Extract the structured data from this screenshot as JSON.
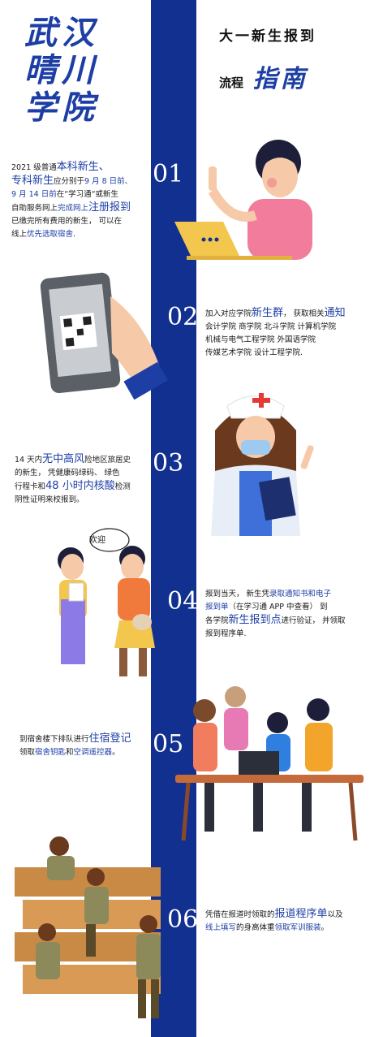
{
  "school": {
    "line1": "武汉",
    "line2": "晴川",
    "line3": "学院"
  },
  "header": {
    "line1": "大一新生报到",
    "line2_small": "流程",
    "line2_big": "指南"
  },
  "steps": [
    {
      "num": "01",
      "p1": "2021 级普通",
      "p1_hl": "本科新生、",
      "p2_hl": "专科新生",
      "p2": "应分别于",
      "p2_date": "9 月 8 日前、",
      "p3_date": "9 月 14 日前",
      "p3": "在“学习通“或新生",
      "p4": "自助服务网上",
      "p4_hl": "完成网上",
      "p4_big": "注册报到",
      "p5": "已缴完所有费用的新生， 可以在",
      "p6": "线上",
      "p6_hl": "优先选取宿舍",
      "p6_end": "."
    },
    {
      "num": "02",
      "p1": "加入对应学院",
      "p1_big": "新生群",
      "p1_mid": "， 获取相关",
      "p1_big2": "通知",
      "p2": "会计学院 商学院 北斗学院 计算机学院",
      "p3": "机械与电气工程学院 外国语学院",
      "p4": "传媒艺术学院 设计工程学院."
    },
    {
      "num": "03",
      "p1": "14 天内",
      "p1_big": "无中高风",
      "p1_end": "险地区旅居史",
      "p2": "的新生， 凭健康码绿码、 绿色",
      "p3": "行程卡和",
      "p3_big": "48 小时内核酸",
      "p3_end": "检测",
      "p4": "阴性证明来校报到。"
    },
    {
      "num": "04",
      "p1": "报到当天， 新生凭",
      "p1_hl": "录取通知书和电子",
      "p2_hl": "报到单",
      "p2": "（在学习通 APP 中查看） 到",
      "p3": "各学院",
      "p3_big": "新生报到点",
      "p3_end": "进行验证， 并领取",
      "p4": "报到程序单."
    },
    {
      "num": "05",
      "p1": "到宿舍楼下排队进行",
      "p1_big": "住宿登记",
      "p2": "领取",
      "p2_hl": "宿舍钥匙",
      "p2_mid": "和",
      "p2_hl2": "空调遥控器",
      "p2_end": "。"
    },
    {
      "num": "06",
      "p1": "凭借在报道时领取的",
      "p1_big": "报道程序单",
      "p1_end": "以及",
      "p2_hl": "线上填写",
      "p2": "的身高体重",
      "p2_hl2": "领取军训服装",
      "p2_end": "。"
    }
  ],
  "bubble": "欢迎",
  "colors": {
    "band": "#12308f",
    "accent": "#1d3fa5"
  }
}
